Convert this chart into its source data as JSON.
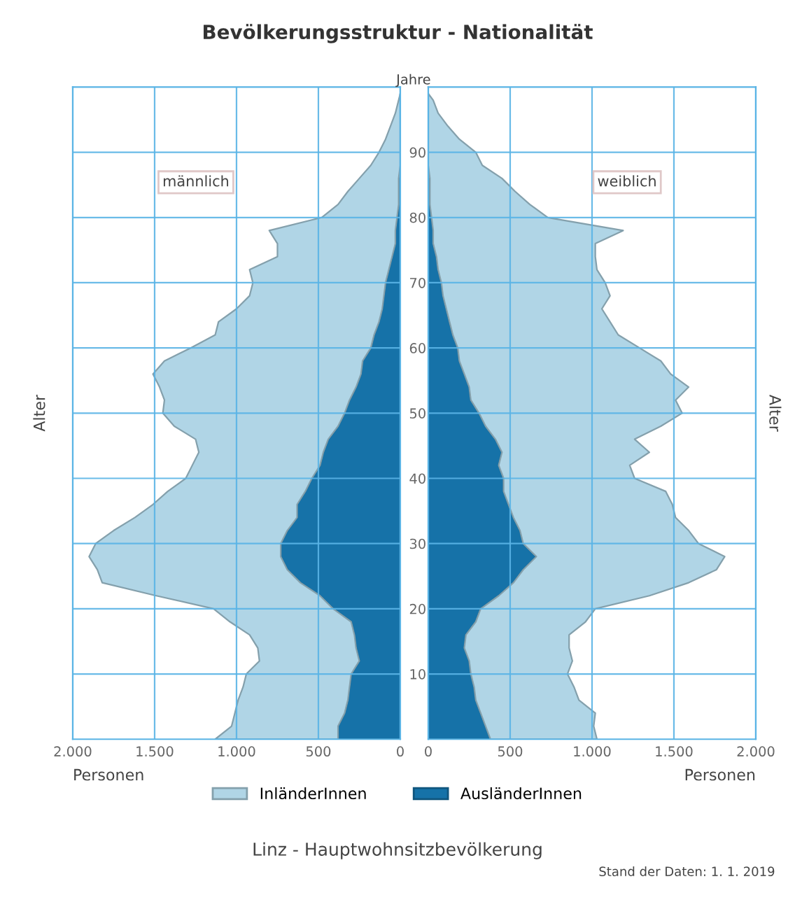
{
  "chart_data": [
    {
      "type": "area",
      "orientation": "horizontal",
      "stacked": true,
      "title": "Bevölkerungsstruktur - Nationalität",
      "xlabel": "Personen",
      "ylabel": "Alter",
      "x": [
        0,
        2,
        4,
        6,
        8,
        10,
        12,
        14,
        16,
        18,
        20,
        22,
        24,
        26,
        28,
        30,
        32,
        34,
        36,
        38,
        40,
        42,
        44,
        46,
        48,
        50,
        52,
        54,
        56,
        58,
        60,
        62,
        64,
        66,
        68,
        70,
        72,
        74,
        76,
        78,
        80,
        82,
        84,
        86,
        88,
        90,
        92,
        94,
        96,
        98,
        99
      ],
      "series": [
        {
          "name": "AusländerInnen",
          "color": "#1672a8",
          "values": [
            380,
            380,
            340,
            320,
            310,
            300,
            250,
            270,
            280,
            300,
            410,
            490,
            610,
            690,
            730,
            730,
            690,
            630,
            630,
            580,
            540,
            490,
            470,
            440,
            380,
            340,
            310,
            270,
            240,
            230,
            180,
            160,
            130,
            110,
            100,
            90,
            70,
            50,
            30,
            30,
            20,
            10,
            10,
            10,
            0,
            0,
            0,
            0,
            0,
            0,
            0
          ]
        },
        {
          "name": "InländerInnen",
          "color": "#b0d5e6",
          "values": [
            750,
            650,
            670,
            670,
            650,
            640,
            610,
            600,
            640,
            740,
            730,
            1000,
            1210,
            1160,
            1170,
            1130,
            1060,
            990,
            880,
            840,
            770,
            780,
            760,
            810,
            1000,
            1110,
            1130,
            1200,
            1270,
            1210,
            1100,
            970,
            980,
            890,
            820,
            810,
            850,
            700,
            720,
            770,
            460,
            370,
            310,
            240,
            180,
            130,
            90,
            60,
            30,
            10,
            0
          ]
        }
      ],
      "xlim": [
        2000,
        0
      ],
      "xticks": [
        {
          "value": 2000,
          "label": "2.000"
        },
        {
          "value": 1500,
          "label": "1.500"
        },
        {
          "value": 1000,
          "label": "1.000"
        },
        500,
        0
      ],
      "ylim": [
        0,
        100
      ],
      "yticks": [
        10,
        20,
        30,
        40,
        50,
        60,
        70,
        80,
        90
      ],
      "tick_labels": "x",
      "grid": true,
      "legend": "bottom",
      "annotations": [
        "männlich"
      ]
    },
    {
      "type": "area",
      "orientation": "horizontal",
      "stacked": true,
      "xlabel": "Personen",
      "ylabel": "Jahre",
      "y2label": "Alter",
      "x": [
        0,
        2,
        4,
        6,
        8,
        10,
        12,
        14,
        16,
        18,
        20,
        22,
        24,
        26,
        28,
        30,
        32,
        34,
        36,
        38,
        40,
        42,
        44,
        46,
        48,
        50,
        52,
        54,
        56,
        58,
        60,
        62,
        64,
        66,
        68,
        70,
        72,
        74,
        76,
        78,
        80,
        82,
        84,
        86,
        88,
        90,
        92,
        94,
        96,
        98,
        99
      ],
      "series": [
        {
          "name": "AusländerInnen",
          "color": "#1672a8",
          "values": [
            380,
            350,
            320,
            290,
            280,
            260,
            250,
            220,
            230,
            290,
            320,
            430,
            520,
            580,
            660,
            580,
            560,
            520,
            490,
            460,
            460,
            430,
            450,
            410,
            350,
            310,
            260,
            250,
            220,
            190,
            180,
            150,
            130,
            110,
            90,
            80,
            60,
            50,
            30,
            30,
            20,
            10,
            10,
            10,
            0,
            0,
            0,
            0,
            0,
            0,
            0
          ]
        },
        {
          "name": "InländerInnen",
          "color": "#b0d5e6",
          "values": [
            650,
            660,
            700,
            630,
            610,
            590,
            630,
            640,
            630,
            670,
            700,
            920,
            1070,
            1180,
            1150,
            1070,
            1030,
            990,
            1000,
            990,
            800,
            800,
            900,
            850,
            1070,
            1240,
            1250,
            1340,
            1260,
            1230,
            1110,
            1010,
            980,
            950,
            1020,
            1000,
            970,
            970,
            990,
            1160,
            710,
            610,
            520,
            440,
            330,
            290,
            190,
            120,
            60,
            30,
            0
          ]
        }
      ],
      "xlim": [
        0,
        2000
      ],
      "xticks": [
        0,
        500,
        {
          "value": 1000,
          "label": "1.000"
        },
        {
          "value": 1500,
          "label": "1.500"
        },
        {
          "value": 2000,
          "label": "2.000"
        }
      ],
      "ylim": [
        0,
        100
      ],
      "yticks": [
        10,
        20,
        30,
        40,
        50,
        60,
        70,
        80,
        90
      ],
      "grid": true,
      "annotations": [
        "weiblich",
        "Linz - Hauptwohnsitzbevölkerung",
        "Stand der Daten: 1. 1. 2019"
      ]
    }
  ]
}
